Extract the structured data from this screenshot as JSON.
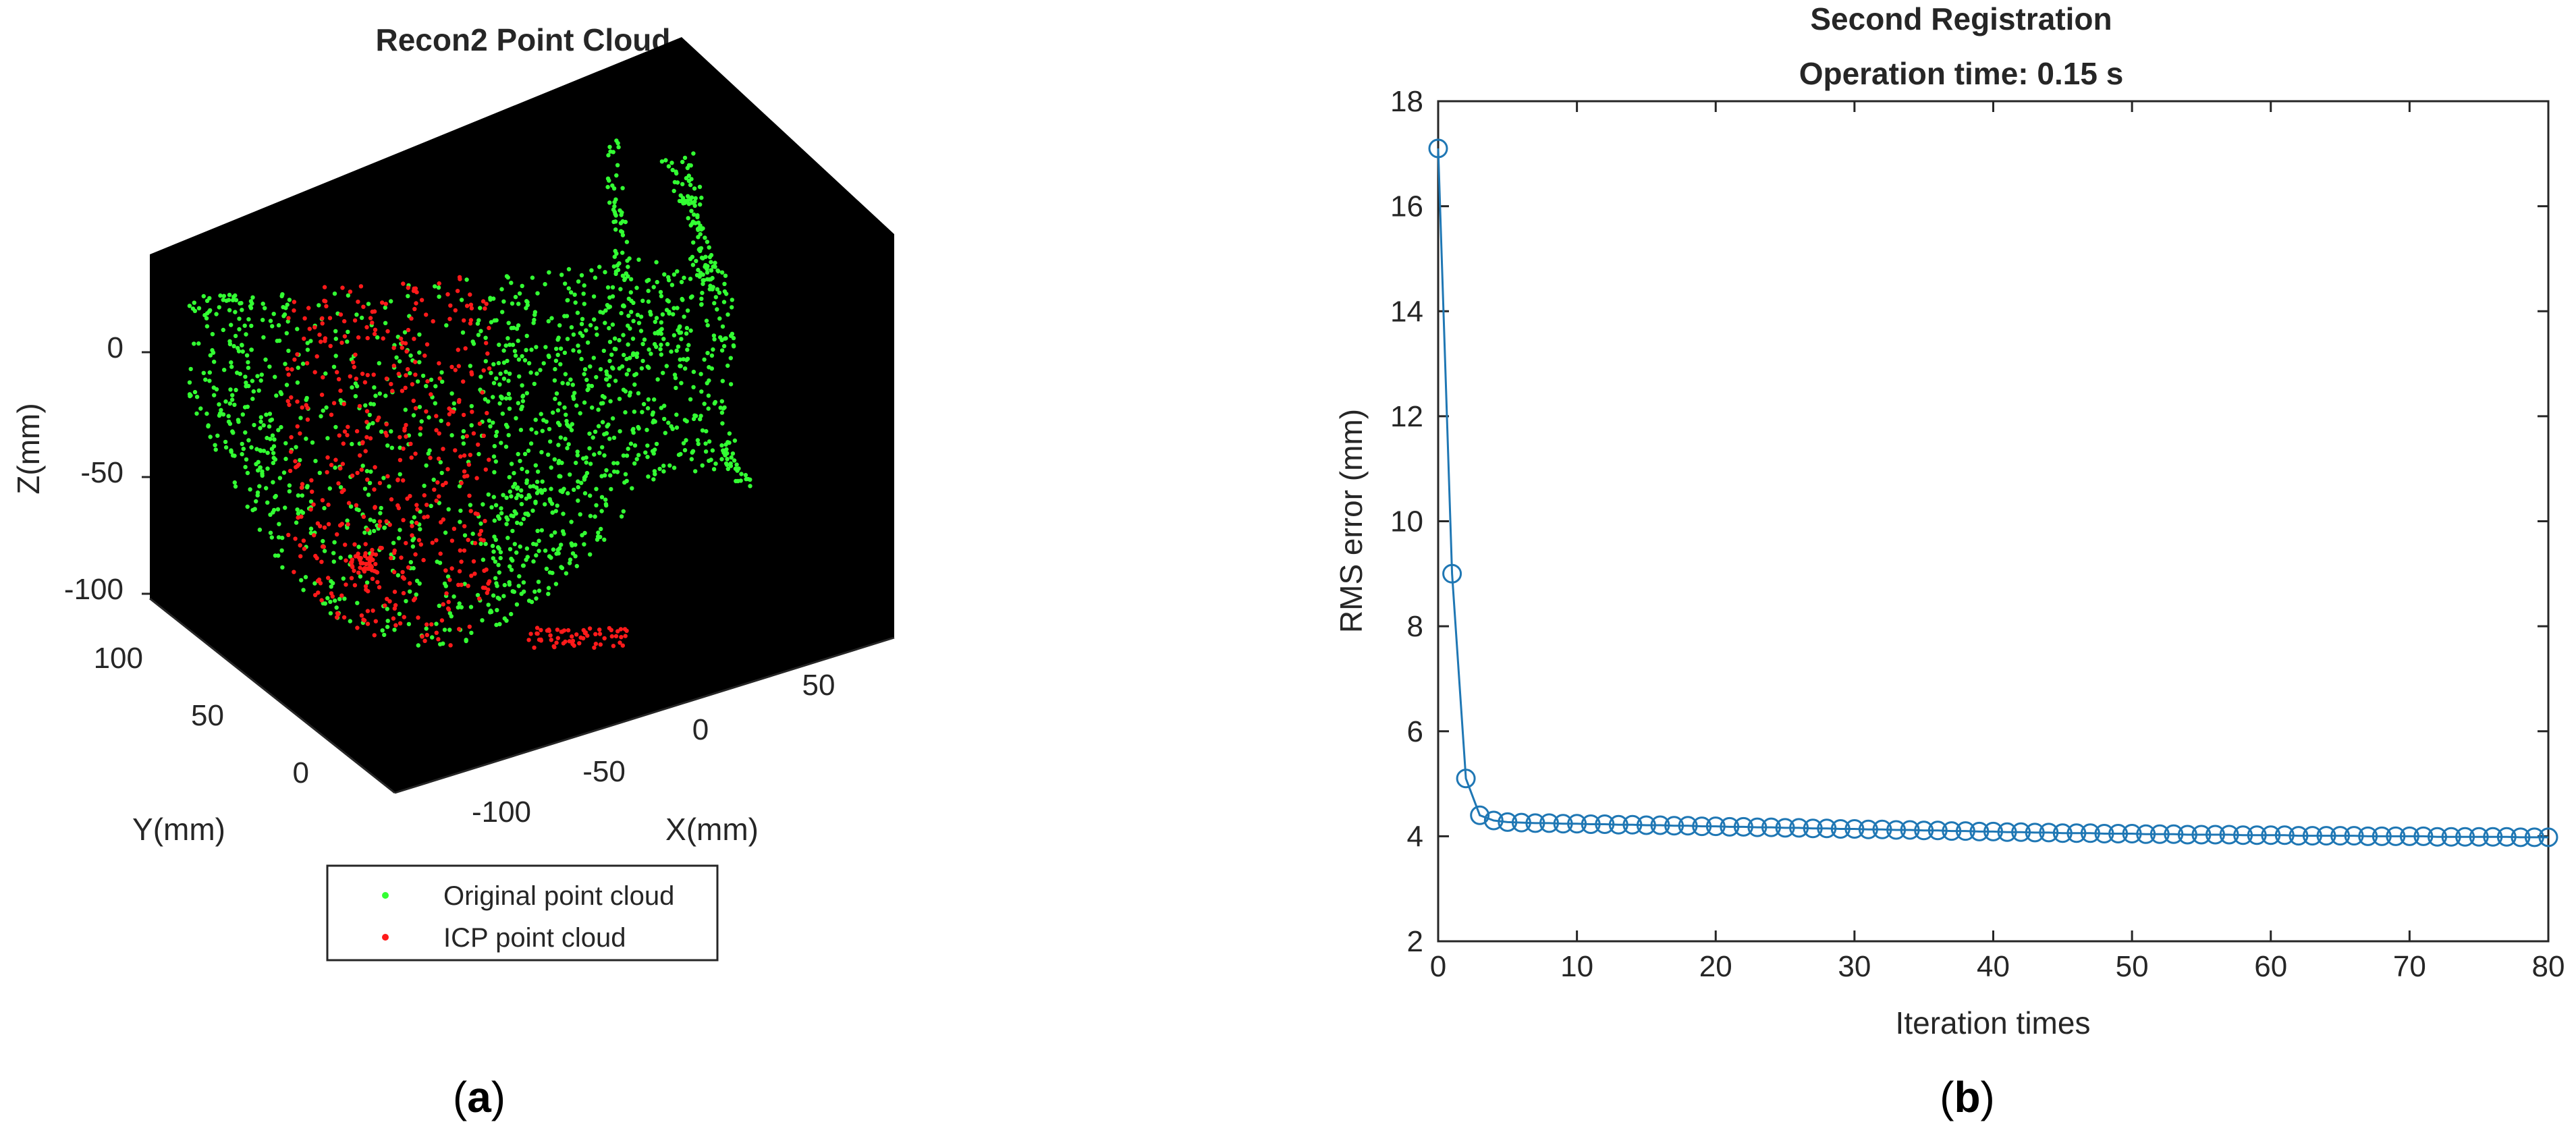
{
  "panels": {
    "a": {
      "label_open": "(",
      "label_letter": "a",
      "label_close": ")"
    },
    "b": {
      "label_open": "(",
      "label_letter": "b",
      "label_close": ")"
    }
  },
  "colors": {
    "original_cloud": "#33ff33",
    "icp_cloud": "#ff1a1a",
    "line_series": "#1f77b4",
    "axis": "#262626",
    "plot_bg_3d": "#000000"
  },
  "chart_data": [
    {
      "type": "scatter",
      "projection": "3d",
      "title": "Recon2 Point Cloud",
      "xlabel": "X(mm)",
      "ylabel": "Y(mm)",
      "zlabel": "Z(mm)",
      "x_ticks": [
        "-100",
        "-50",
        "0",
        "50"
      ],
      "y_ticks": [
        "0",
        "50",
        "100"
      ],
      "z_ticks": [
        "0",
        "-50",
        "-100"
      ],
      "legend": [
        "Original point cloud",
        "ICP point cloud"
      ],
      "legend_position": "below",
      "series": [
        {
          "name": "Original point cloud",
          "color": "#33ff33"
        },
        {
          "name": "ICP point cloud",
          "color": "#ff1a1a"
        }
      ]
    },
    {
      "type": "line",
      "marker": "circle",
      "title": "Second Registration",
      "subtitle": "Operation time: 0.15 s",
      "xlabel": "Iteration times",
      "ylabel": "RMS error (mm)",
      "xlim": [
        0,
        80
      ],
      "ylim": [
        2,
        18
      ],
      "x_ticks": [
        0,
        10,
        20,
        30,
        40,
        50,
        60,
        70,
        80
      ],
      "y_ticks": [
        2,
        4,
        6,
        8,
        10,
        12,
        14,
        16,
        18
      ],
      "grid": false,
      "series": [
        {
          "x": [
            0,
            1,
            2,
            3,
            4,
            5,
            6,
            7,
            8,
            9,
            10,
            11,
            12,
            13,
            14,
            15,
            16,
            17,
            18,
            19,
            20,
            21,
            22,
            23,
            24,
            25,
            26,
            27,
            28,
            29,
            30,
            31,
            32,
            33,
            34,
            35,
            36,
            37,
            38,
            39,
            40,
            41,
            42,
            43,
            44,
            45,
            46,
            47,
            48,
            49,
            50,
            51,
            52,
            53,
            54,
            55,
            56,
            57,
            58,
            59,
            60,
            61,
            62,
            63,
            64,
            65,
            66,
            67,
            68,
            69,
            70,
            71,
            72,
            73,
            74,
            75,
            76,
            77,
            78,
            79,
            80
          ],
          "y": [
            17.1,
            9.0,
            5.1,
            4.4,
            4.3,
            4.27,
            4.26,
            4.25,
            4.25,
            4.24,
            4.24,
            4.23,
            4.23,
            4.22,
            4.22,
            4.21,
            4.21,
            4.2,
            4.2,
            4.19,
            4.19,
            4.18,
            4.18,
            4.17,
            4.17,
            4.16,
            4.16,
            4.15,
            4.15,
            4.14,
            4.14,
            4.13,
            4.13,
            4.12,
            4.12,
            4.11,
            4.11,
            4.1,
            4.1,
            4.09,
            4.09,
            4.08,
            4.08,
            4.07,
            4.07,
            4.06,
            4.06,
            4.06,
            4.05,
            4.05,
            4.05,
            4.04,
            4.04,
            4.04,
            4.03,
            4.03,
            4.03,
            4.03,
            4.02,
            4.02,
            4.02,
            4.02,
            4.01,
            4.01,
            4.01,
            4.01,
            4.01,
            4.0,
            4.0,
            4.0,
            4.0,
            4.0,
            3.99,
            3.99,
            3.99,
            3.99,
            3.99,
            3.99,
            3.98,
            3.98,
            3.98
          ]
        }
      ]
    }
  ]
}
